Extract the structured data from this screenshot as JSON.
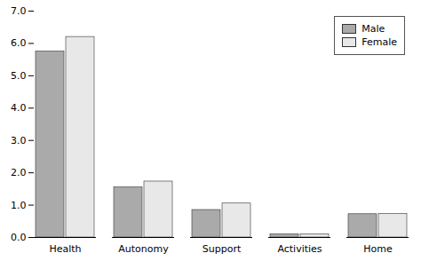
{
  "chart_data": {
    "type": "bar",
    "categories": [
      "Health",
      "Autonomy",
      "Support",
      "Activities",
      "Home"
    ],
    "series": [
      {
        "name": "Male",
        "color": "#aaaaaa",
        "values": [
          5.75,
          1.55,
          0.85,
          0.1,
          0.72
        ]
      },
      {
        "name": "Female",
        "color": "#e8e8e8",
        "values": [
          6.2,
          1.73,
          1.05,
          0.1,
          0.73
        ]
      }
    ],
    "ylim": [
      0,
      7
    ],
    "yticks": [
      0,
      1,
      2,
      3,
      4,
      5,
      6,
      7
    ],
    "grid": false,
    "legend": "upper right"
  }
}
